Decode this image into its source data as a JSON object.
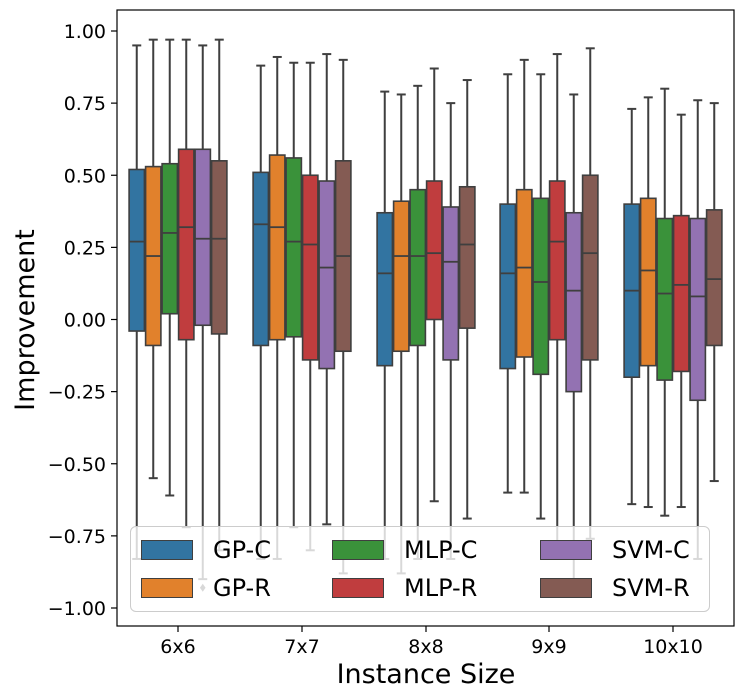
{
  "chart_data": {
    "type": "box",
    "title": "",
    "xlabel": "Instance Size",
    "ylabel": "Improvement",
    "ylim": [
      -1.05,
      1.05
    ],
    "yticks": [
      "1.00",
      "0.75",
      "0.50",
      "0.25",
      "0.00",
      "−0.25",
      "−0.50",
      "−0.75",
      "−1.00"
    ],
    "ytick_values": [
      1.0,
      0.75,
      0.5,
      0.25,
      0.0,
      -0.25,
      -0.5,
      -0.75,
      -1.0
    ],
    "categories": [
      "6x6",
      "7x7",
      "8x8",
      "9x9",
      "10x10"
    ],
    "series": [
      {
        "name": "GP-C",
        "color": "#3274a1",
        "boxes": [
          {
            "low": -0.83,
            "q1": -0.04,
            "median": 0.27,
            "q3": 0.52,
            "high": 0.95
          },
          {
            "low": -0.83,
            "q1": -0.09,
            "median": 0.33,
            "q3": 0.51,
            "high": 0.88
          },
          {
            "low": -0.83,
            "q1": -0.16,
            "median": 0.16,
            "q3": 0.37,
            "high": 0.79
          },
          {
            "low": -0.6,
            "q1": -0.17,
            "median": 0.16,
            "q3": 0.4,
            "high": 0.85
          },
          {
            "low": -0.64,
            "q1": -0.2,
            "median": 0.1,
            "q3": 0.4,
            "high": 0.73
          }
        ]
      },
      {
        "name": "GP-R",
        "color": "#e1812c",
        "boxes": [
          {
            "low": -0.55,
            "q1": -0.09,
            "median": 0.22,
            "q3": 0.53,
            "high": 0.97
          },
          {
            "low": -0.83,
            "q1": -0.07,
            "median": 0.32,
            "q3": 0.57,
            "high": 0.91
          },
          {
            "low": -0.88,
            "q1": -0.11,
            "median": 0.22,
            "q3": 0.41,
            "high": 0.78
          },
          {
            "low": -0.6,
            "q1": -0.13,
            "median": 0.18,
            "q3": 0.45,
            "high": 0.9
          },
          {
            "low": -0.65,
            "q1": -0.16,
            "median": 0.17,
            "q3": 0.42,
            "high": 0.77
          }
        ]
      },
      {
        "name": "MLP-C",
        "color": "#3a923a",
        "boxes": [
          {
            "low": -0.61,
            "q1": 0.02,
            "median": 0.3,
            "q3": 0.54,
            "high": 0.97
          },
          {
            "low": -0.72,
            "q1": -0.06,
            "median": 0.27,
            "q3": 0.56,
            "high": 0.89
          },
          {
            "low": -0.83,
            "q1": -0.09,
            "median": 0.22,
            "q3": 0.45,
            "high": 0.81
          },
          {
            "low": -0.69,
            "q1": -0.19,
            "median": 0.13,
            "q3": 0.42,
            "high": 0.85
          },
          {
            "low": -0.68,
            "q1": -0.21,
            "median": 0.09,
            "q3": 0.35,
            "high": 0.8
          }
        ]
      },
      {
        "name": "MLP-R",
        "color": "#c03d3e",
        "boxes": [
          {
            "low": -0.72,
            "q1": -0.07,
            "median": 0.32,
            "q3": 0.59,
            "high": 0.97
          },
          {
            "low": -0.8,
            "q1": -0.14,
            "median": 0.26,
            "q3": 0.5,
            "high": 0.89
          },
          {
            "low": -0.63,
            "q1": 0.0,
            "median": 0.23,
            "q3": 0.48,
            "high": 0.87
          },
          {
            "low": -0.83,
            "q1": -0.07,
            "median": 0.27,
            "q3": 0.48,
            "high": 0.92
          },
          {
            "low": -0.65,
            "q1": -0.18,
            "median": 0.12,
            "q3": 0.36,
            "high": 0.71
          }
        ]
      },
      {
        "name": "SVM-C",
        "color": "#9372b2",
        "boxes": [
          {
            "low": -0.9,
            "q1": -0.02,
            "median": 0.28,
            "q3": 0.59,
            "high": 0.95
          },
          {
            "low": -0.71,
            "q1": -0.17,
            "median": 0.18,
            "q3": 0.48,
            "high": 0.92
          },
          {
            "low": -0.83,
            "q1": -0.14,
            "median": 0.2,
            "q3": 0.39,
            "high": 0.75
          },
          {
            "low": -0.96,
            "q1": -0.25,
            "median": 0.1,
            "q3": 0.37,
            "high": 0.78
          },
          {
            "low": -0.83,
            "q1": -0.28,
            "median": 0.08,
            "q3": 0.35,
            "high": 0.76
          }
        ]
      },
      {
        "name": "SVM-R",
        "color": "#845b53",
        "boxes": [
          {
            "low": -0.8,
            "q1": -0.05,
            "median": 0.28,
            "q3": 0.55,
            "high": 0.97
          },
          {
            "low": -0.88,
            "q1": -0.11,
            "median": 0.22,
            "q3": 0.55,
            "high": 0.9
          },
          {
            "low": -0.69,
            "q1": -0.03,
            "median": 0.26,
            "q3": 0.46,
            "high": 0.83
          },
          {
            "low": -0.76,
            "q1": -0.14,
            "median": 0.23,
            "q3": 0.5,
            "high": 0.94
          },
          {
            "low": -0.56,
            "q1": -0.09,
            "median": 0.14,
            "q3": 0.38,
            "high": 0.75
          }
        ]
      }
    ],
    "outliers": [
      {
        "category": "6x6",
        "series": "SVM-C",
        "value": -0.93
      }
    ],
    "legend": {
      "position": "lower center",
      "columns": 3
    }
  }
}
